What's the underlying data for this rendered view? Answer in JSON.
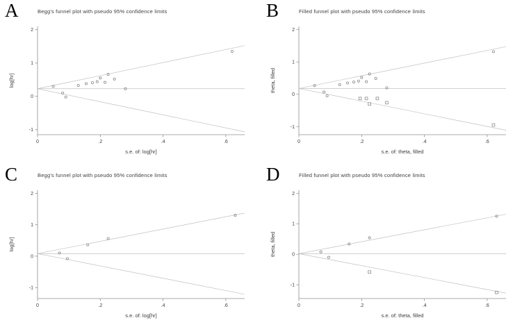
{
  "figure": {
    "background": "#ffffff",
    "axis_color": "#8f8f8f",
    "line_color": "#c0c0c0",
    "marker_color": "#8a8a8a",
    "text_color": "#3d3d3d",
    "letter_color": "#000000"
  },
  "chart_data": [
    {
      "type": "scatter",
      "panel_label": "A",
      "title": "Begg's funnel plot with pseudo 95% confidence limits",
      "xlabel": "s.e. of: log[hr]",
      "ylabel": "log[hr]",
      "xlim": [
        0,
        0.66
      ],
      "ylim": [
        -1.15,
        2.1
      ],
      "xticks": [
        0,
        0.2,
        0.4,
        0.6
      ],
      "xtick_labels": [
        "0",
        ".2",
        ".4",
        ".6"
      ],
      "yticks": [
        -1,
        0,
        1,
        2
      ],
      "ytick_labels": [
        "-1",
        "0",
        "1",
        "2"
      ],
      "grid": false,
      "legend": "none",
      "center_line": 0.23,
      "ci_z": 1.96,
      "points": [
        [
          0.05,
          0.3
        ],
        [
          0.08,
          0.1
        ],
        [
          0.09,
          -0.02
        ],
        [
          0.13,
          0.33
        ],
        [
          0.155,
          0.38
        ],
        [
          0.175,
          0.41
        ],
        [
          0.19,
          0.44
        ],
        [
          0.2,
          0.55
        ],
        [
          0.215,
          0.42
        ],
        [
          0.225,
          0.66
        ],
        [
          0.245,
          0.52
        ],
        [
          0.28,
          0.23
        ],
        [
          0.62,
          1.35
        ]
      ],
      "filled_points": []
    },
    {
      "type": "scatter",
      "panel_label": "B",
      "title": "Filled funnel plot with pseudo 95% confidence limits",
      "xlabel": "s.e. of: theta, filled",
      "ylabel": "theta, filled",
      "xlim": [
        0,
        0.66
      ],
      "ylim": [
        -1.25,
        2.1
      ],
      "xticks": [
        0,
        0.2,
        0.4,
        0.6
      ],
      "xtick_labels": [
        "0",
        ".2",
        ".4",
        ".6"
      ],
      "yticks": [
        -1,
        0,
        1,
        2
      ],
      "ytick_labels": [
        "-1",
        "0",
        "1",
        "2"
      ],
      "grid": false,
      "legend": "none",
      "center_line": 0.18,
      "ci_z": 1.96,
      "points": [
        [
          0.05,
          0.27
        ],
        [
          0.08,
          0.07
        ],
        [
          0.09,
          -0.05
        ],
        [
          0.13,
          0.3
        ],
        [
          0.155,
          0.35
        ],
        [
          0.175,
          0.38
        ],
        [
          0.19,
          0.41
        ],
        [
          0.2,
          0.52
        ],
        [
          0.215,
          0.39
        ],
        [
          0.225,
          0.63
        ],
        [
          0.245,
          0.49
        ],
        [
          0.28,
          0.2
        ],
        [
          0.62,
          1.32
        ]
      ],
      "filled_points": [
        [
          0.195,
          -0.13
        ],
        [
          0.215,
          -0.13
        ],
        [
          0.225,
          -0.3
        ],
        [
          0.25,
          -0.13
        ],
        [
          0.28,
          -0.26
        ],
        [
          0.62,
          -0.95
        ]
      ]
    },
    {
      "type": "scatter",
      "panel_label": "C",
      "title": "Begg's funnel plot with pseudo 95% confidence limits",
      "xlabel": "s.e. of: log[hr]",
      "ylabel": "log[hr]",
      "xlim": [
        0,
        0.66
      ],
      "ylim": [
        -1.35,
        2.1
      ],
      "xticks": [
        0,
        0.2,
        0.4,
        0.6
      ],
      "xtick_labels": [
        "0",
        ".2",
        ".4",
        ".6"
      ],
      "yticks": [
        -1,
        0,
        1,
        2
      ],
      "ytick_labels": [
        "-1",
        "0",
        "1",
        "2"
      ],
      "grid": false,
      "legend": "none",
      "center_line": 0.08,
      "ci_z": 1.96,
      "points": [
        [
          0.07,
          0.1
        ],
        [
          0.095,
          -0.08
        ],
        [
          0.16,
          0.36
        ],
        [
          0.225,
          0.56
        ],
        [
          0.63,
          1.3
        ]
      ],
      "filled_points": []
    },
    {
      "type": "scatter",
      "panel_label": "D",
      "title": "Filled funnel plot with pseudo 95% confidence limits",
      "xlabel": "s.e. of: theta, filled",
      "ylabel": "theta, filled",
      "xlim": [
        0,
        0.66
      ],
      "ylim": [
        -1.45,
        2.1
      ],
      "xticks": [
        0,
        0.2,
        0.4,
        0.6
      ],
      "xtick_labels": [
        "0",
        ".2",
        ".4",
        ".6"
      ],
      "yticks": [
        -1,
        0,
        1,
        2
      ],
      "ytick_labels": [
        "-1",
        "0",
        "1",
        "2"
      ],
      "grid": false,
      "legend": "none",
      "center_line": 0.02,
      "ci_z": 1.96,
      "points": [
        [
          0.07,
          0.08
        ],
        [
          0.095,
          -0.1
        ],
        [
          0.16,
          0.34
        ],
        [
          0.225,
          0.54
        ],
        [
          0.63,
          1.25
        ]
      ],
      "filled_points": [
        [
          0.225,
          -0.58
        ],
        [
          0.63,
          -1.25
        ]
      ]
    }
  ]
}
